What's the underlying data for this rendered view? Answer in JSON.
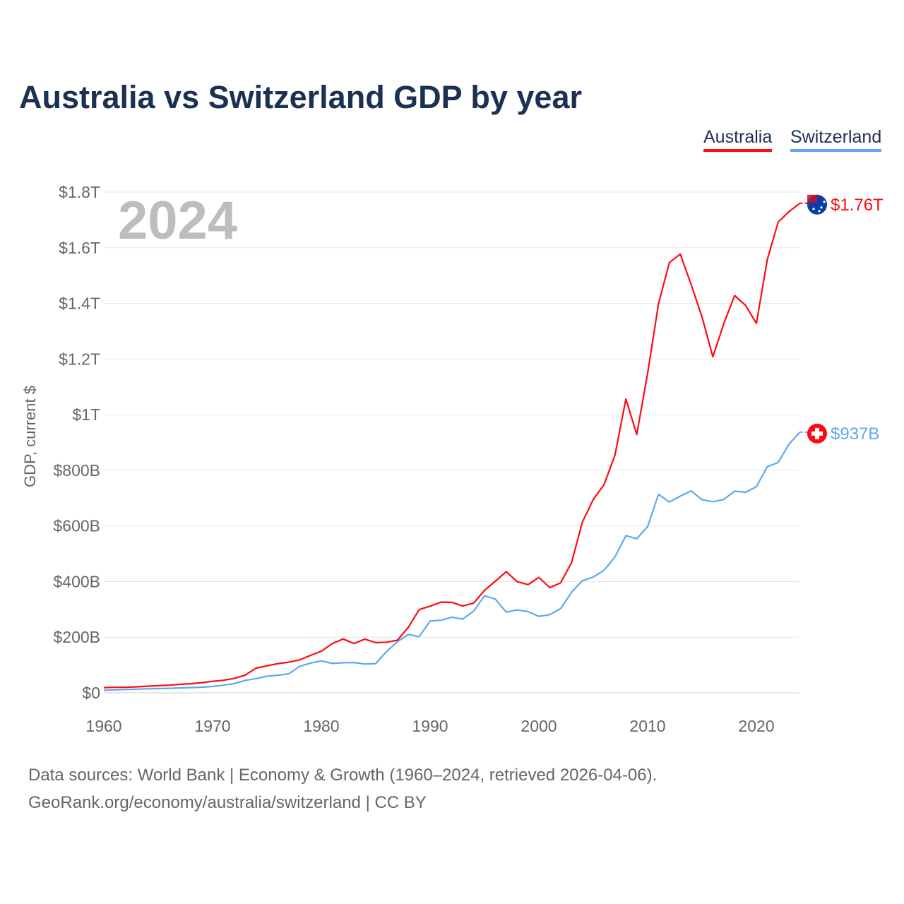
{
  "title": "Australia vs Switzerland GDP by year",
  "footer": {
    "line1": "Data sources: World Bank | Economy & Growth (1960–2024, retrieved 2026-04-06).",
    "line2": "GeoRank.org/economy/australia/switzerland | CC BY"
  },
  "chart_data": {
    "type": "line",
    "title": "Australia vs Switzerland GDP by year",
    "ylabel": "GDP, current $",
    "xlabel": "",
    "year_label": "2024",
    "xlim": [
      1960,
      2024
    ],
    "ylim": [
      0,
      1.8
    ],
    "y_unit": "trillions USD",
    "grid": true,
    "legend_placement": "top-right",
    "x_ticks": [
      1960,
      1970,
      1980,
      1990,
      2000,
      2010,
      2020
    ],
    "y_ticks": [
      0,
      0.2,
      0.4,
      0.6,
      0.8,
      1.0,
      1.2,
      1.4,
      1.6,
      1.8
    ],
    "y_tick_labels": [
      "$0",
      "$200B",
      "$400B",
      "$600B",
      "$800B",
      "$1T",
      "$1.2T",
      "$1.4T",
      "$1.6T",
      "$1.8T"
    ],
    "x": [
      1960,
      1961,
      1962,
      1963,
      1964,
      1965,
      1966,
      1967,
      1968,
      1969,
      1970,
      1971,
      1972,
      1973,
      1974,
      1975,
      1976,
      1977,
      1978,
      1979,
      1980,
      1981,
      1982,
      1983,
      1984,
      1985,
      1986,
      1987,
      1988,
      1989,
      1990,
      1991,
      1992,
      1993,
      1994,
      1995,
      1996,
      1997,
      1998,
      1999,
      2000,
      2001,
      2002,
      2003,
      2004,
      2005,
      2006,
      2007,
      2008,
      2009,
      2010,
      2011,
      2012,
      2013,
      2014,
      2015,
      2016,
      2017,
      2018,
      2019,
      2020,
      2021,
      2022,
      2023,
      2024
    ],
    "series": [
      {
        "name": "Australia",
        "color": "#ff0a12",
        "end_label": "$1.76T",
        "values": [
          0.0186,
          0.0197,
          0.0199,
          0.0215,
          0.0238,
          0.0259,
          0.0273,
          0.0304,
          0.0327,
          0.0366,
          0.0413,
          0.0451,
          0.0519,
          0.0637,
          0.0888,
          0.0972,
          0.1049,
          0.1101,
          0.1183,
          0.1346,
          0.1498,
          0.1766,
          0.1937,
          0.1773,
          0.1932,
          0.1802,
          0.182,
          0.1891,
          0.2357,
          0.2993,
          0.3114,
          0.3259,
          0.3255,
          0.312,
          0.3228,
          0.368,
          0.4013,
          0.4356,
          0.3996,
          0.389,
          0.415,
          0.3784,
          0.3956,
          0.4675,
          0.6142,
          0.695,
          0.7489,
          0.855,
          1.0561,
          0.9288,
          1.1488,
          1.3987,
          1.547,
          1.577,
          1.468,
          1.351,
          1.208,
          1.327,
          1.428,
          1.393,
          1.328,
          1.557,
          1.692,
          1.73,
          1.76
        ]
      },
      {
        "name": "Switzerland",
        "color": "#5fa8ef",
        "end_label": "$937B",
        "values": [
          0.0095,
          0.0107,
          0.0119,
          0.0131,
          0.0145,
          0.0153,
          0.0163,
          0.0175,
          0.0189,
          0.0204,
          0.0229,
          0.0273,
          0.0335,
          0.0446,
          0.0514,
          0.0596,
          0.0633,
          0.0684,
          0.0953,
          0.107,
          0.115,
          0.1056,
          0.1081,
          0.109,
          0.1035,
          0.105,
          0.1488,
          0.184,
          0.21,
          0.202,
          0.258,
          0.261,
          0.272,
          0.265,
          0.294,
          0.349,
          0.337,
          0.29,
          0.298,
          0.292,
          0.275,
          0.281,
          0.303,
          0.361,
          0.403,
          0.416,
          0.441,
          0.489,
          0.565,
          0.554,
          0.598,
          0.714,
          0.686,
          0.707,
          0.726,
          0.694,
          0.687,
          0.695,
          0.725,
          0.721,
          0.741,
          0.813,
          0.828,
          0.894,
          0.937
        ]
      }
    ]
  }
}
